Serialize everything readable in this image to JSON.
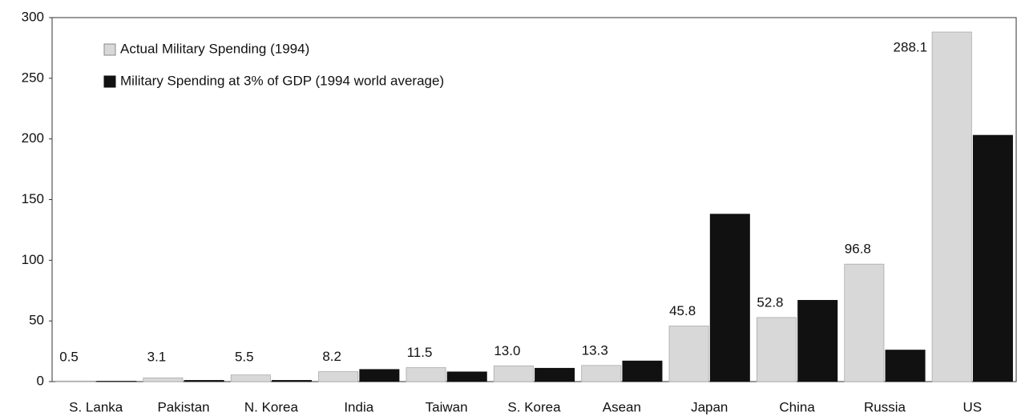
{
  "chart_data": {
    "type": "bar",
    "categories": [
      "S. Lanka",
      "Pakistan",
      "N. Korea",
      "India",
      "Taiwan",
      "S. Korea",
      "Asean",
      "Japan",
      "China",
      "Russia",
      "US"
    ],
    "series": [
      {
        "name": "Actual Military Spending (1994)",
        "color": "#d8d8d8",
        "values": [
          0.5,
          3.1,
          5.5,
          8.2,
          11.5,
          13.0,
          13.3,
          45.8,
          52.8,
          96.8,
          288.1
        ],
        "value_labels": [
          "0.5",
          "3.1",
          "5.5",
          "8.2",
          "11.5",
          "13.0",
          "13.3",
          "45.8",
          "52.8",
          "96.8",
          "288.1"
        ]
      },
      {
        "name": "Military Spending at 3% of GDP (1994 world average)",
        "color": "#111111",
        "values": [
          0.3,
          1,
          1,
          10,
          8,
          11,
          17,
          138,
          67,
          26,
          203
        ]
      }
    ],
    "ylim": [
      0,
      300
    ],
    "yticks": [
      0,
      50,
      100,
      150,
      200,
      250,
      300
    ],
    "grid": false,
    "legend": "upper left"
  }
}
